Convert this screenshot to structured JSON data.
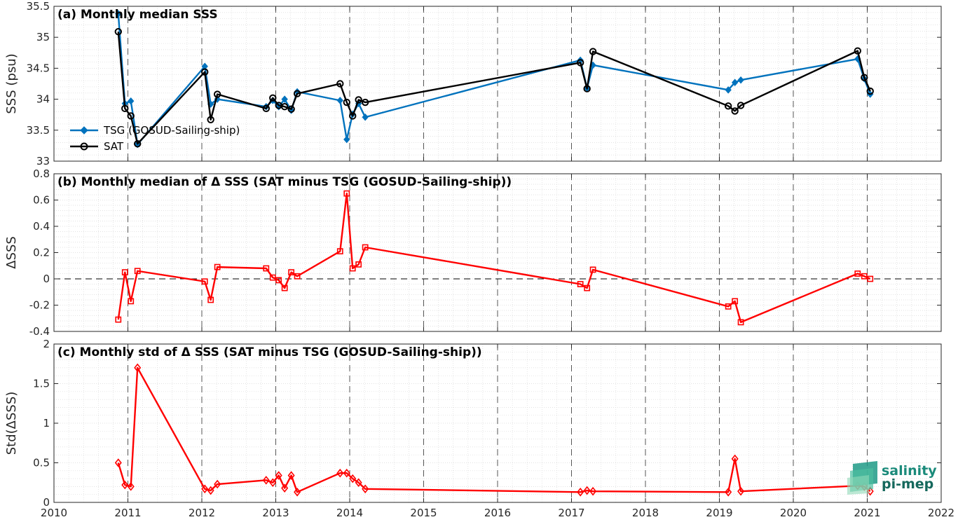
{
  "chart_data": [
    {
      "type": "line",
      "title": "(a) Monthly median SSS",
      "xlabel": "",
      "ylabel": "SSS (psu)",
      "xlim": [
        2010,
        2022
      ],
      "ylim": [
        33,
        35.5
      ],
      "yticks": [
        33,
        33.5,
        34,
        34.5,
        35,
        35.5
      ],
      "ytick_labels": [
        "33",
        "33.5",
        "34",
        "34.5",
        "35",
        "35.5"
      ],
      "legend": "middle-left",
      "grid": true,
      "series": [
        {
          "name": "TSG (GOSUD-Sailing-ship)",
          "color": "#0072BD",
          "marker": "diamond-filled",
          "x": [
            2010.87,
            2010.96,
            2011.04,
            2011.13,
            2012.04,
            2012.12,
            2012.21,
            2012.87,
            2012.96,
            2013.04,
            2013.12,
            2013.21,
            2013.29,
            2013.87,
            2013.96,
            2014.04,
            2014.12,
            2014.21,
            2017.12,
            2017.21,
            2017.29,
            2019.12,
            2019.21,
            2019.29,
            2020.87,
            2020.96,
            2021.04
          ],
          "y": [
            35.38,
            33.93,
            33.97,
            33.27,
            34.53,
            33.92,
            34.0,
            33.88,
            33.98,
            33.88,
            34.0,
            33.82,
            34.12,
            33.98,
            33.35,
            33.76,
            33.93,
            33.71,
            34.63,
            34.18,
            34.55,
            34.15,
            34.27,
            34.31,
            34.65,
            34.33,
            34.08
          ]
        },
        {
          "name": "SAT",
          "color": "#000000",
          "marker": "circle-open",
          "x": [
            2010.87,
            2010.96,
            2011.04,
            2011.13,
            2012.04,
            2012.12,
            2012.21,
            2012.87,
            2012.96,
            2013.04,
            2013.12,
            2013.21,
            2013.29,
            2013.87,
            2013.96,
            2014.04,
            2014.12,
            2014.21,
            2017.12,
            2017.21,
            2017.29,
            2019.12,
            2019.21,
            2019.29,
            2020.87,
            2020.96,
            2021.04
          ],
          "y": [
            35.09,
            33.85,
            33.73,
            33.28,
            34.44,
            33.67,
            34.08,
            33.85,
            34.02,
            33.9,
            33.88,
            33.84,
            34.09,
            34.25,
            33.95,
            33.73,
            33.99,
            33.95,
            34.59,
            34.17,
            34.77,
            33.89,
            33.81,
            33.9,
            34.78,
            34.35,
            34.13
          ]
        }
      ]
    },
    {
      "type": "line",
      "title": "(b) Monthly median of Δ SSS (SAT minus TSG (GOSUD-Sailing-ship))",
      "xlabel": "",
      "ylabel": "ΔSSS",
      "xlim": [
        2010,
        2022
      ],
      "ylim": [
        -0.4,
        0.8
      ],
      "yticks": [
        -0.4,
        -0.2,
        0,
        0.2,
        0.4,
        0.6,
        0.8
      ],
      "ytick_labels": [
        "-0.4",
        "-0.2",
        "0",
        "0.2",
        "0.4",
        "0.6",
        "0.8"
      ],
      "reference_line": 0,
      "grid": true,
      "series": [
        {
          "color": "#FF0000",
          "marker": "square-open",
          "x": [
            2010.87,
            2010.96,
            2011.04,
            2011.13,
            2012.04,
            2012.12,
            2012.21,
            2012.87,
            2012.96,
            2013.04,
            2013.12,
            2013.21,
            2013.29,
            2013.87,
            2013.96,
            2014.04,
            2014.12,
            2014.21,
            2017.12,
            2017.21,
            2017.29,
            2019.12,
            2019.21,
            2019.29,
            2020.87,
            2020.96,
            2021.04
          ],
          "y": [
            -0.31,
            0.05,
            -0.17,
            0.06,
            -0.02,
            -0.16,
            0.09,
            0.08,
            0.01,
            -0.01,
            -0.07,
            0.05,
            0.02,
            0.21,
            0.65,
            0.08,
            0.11,
            0.24,
            -0.04,
            -0.07,
            0.07,
            -0.21,
            -0.17,
            -0.33,
            0.04,
            0.02,
            0.0
          ]
        }
      ]
    },
    {
      "type": "line",
      "title": "(c) Monthly std of Δ SSS (SAT minus TSG (GOSUD-Sailing-ship))",
      "xlabel": "",
      "ylabel": "Std(ΔSSS)",
      "xlim": [
        2010,
        2022
      ],
      "ylim": [
        0,
        2
      ],
      "yticks": [
        0,
        0.5,
        1,
        1.5,
        2
      ],
      "ytick_labels": [
        "0",
        "0.5",
        "1",
        "1.5",
        "2"
      ],
      "xticks": [
        2010,
        2011,
        2012,
        2013,
        2014,
        2015,
        2016,
        2017,
        2018,
        2019,
        2020,
        2021,
        2022
      ],
      "xtick_labels": [
        "2010",
        "2011",
        "2012",
        "2013",
        "2014",
        "2015",
        "2016",
        "2017",
        "2018",
        "2019",
        "2020",
        "2021",
        "2022"
      ],
      "grid": true,
      "series": [
        {
          "color": "#FF0000",
          "marker": "diamond-open",
          "x": [
            2010.87,
            2010.96,
            2011.04,
            2011.13,
            2012.04,
            2012.12,
            2012.21,
            2012.87,
            2012.96,
            2013.04,
            2013.12,
            2013.21,
            2013.29,
            2013.87,
            2013.96,
            2014.04,
            2014.12,
            2014.21,
            2017.12,
            2017.21,
            2017.29,
            2019.12,
            2019.21,
            2019.29,
            2020.87,
            2020.96,
            2021.04
          ],
          "y": [
            0.5,
            0.22,
            0.2,
            1.7,
            0.17,
            0.15,
            0.23,
            0.28,
            0.25,
            0.34,
            0.18,
            0.34,
            0.13,
            0.37,
            0.37,
            0.3,
            0.25,
            0.17,
            0.13,
            0.15,
            0.14,
            0.13,
            0.55,
            0.14,
            0.21,
            0.2,
            0.14
          ]
        }
      ]
    }
  ],
  "logo": {
    "line1": "salinity",
    "line2": "pi-mep",
    "icon": "salinity-waves-icon"
  }
}
